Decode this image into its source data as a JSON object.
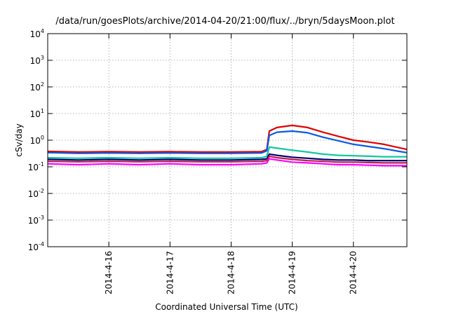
{
  "chart_data": {
    "type": "line",
    "title": "/data/run/goesPlots/archive/2014-04-20/21:00/flux/../bryn/5daysMoon.plot",
    "xlabel": "Coordinated Universal Time (UTC)",
    "ylabel": "cSv/day",
    "yscale": "log",
    "ylim": [
      0.0001,
      10000
    ],
    "xlim": [
      "2014-04-15T00:00",
      "2014-04-20T21:00"
    ],
    "grid": true,
    "legend": "none",
    "x_ticks": [
      "2014-4-16",
      "2014-4-17",
      "2014-4-18",
      "2014-4-19",
      "2014-4-20"
    ],
    "y_ticks": [
      {
        "base": "10",
        "exp": "-4"
      },
      {
        "base": "10",
        "exp": "-3"
      },
      {
        "base": "10",
        "exp": "-2"
      },
      {
        "base": "10",
        "exp": "-1"
      },
      {
        "base": "10",
        "exp": "0"
      },
      {
        "base": "10",
        "exp": "1"
      },
      {
        "base": "10",
        "exp": "2"
      },
      {
        "base": "10",
        "exp": "3"
      },
      {
        "base": "10",
        "exp": "4"
      }
    ],
    "x_dates": [
      "2014-04-15T00:00",
      "2014-04-15T12:00",
      "2014-04-16T00:00",
      "2014-04-16T12:00",
      "2014-04-17T00:00",
      "2014-04-17T12:00",
      "2014-04-18T00:00",
      "2014-04-18T12:00",
      "2014-04-18T14:00",
      "2014-04-18T15:00",
      "2014-04-18T18:00",
      "2014-04-19T00:00",
      "2014-04-19T06:00",
      "2014-04-19T12:00",
      "2014-04-19T18:00",
      "2014-04-20T00:00",
      "2014-04-20T06:00",
      "2014-04-20T12:00",
      "2014-04-20T18:00",
      "2014-04-20T21:00"
    ],
    "series": [
      {
        "color": "#e00000",
        "values": [
          0.38,
          0.36,
          0.37,
          0.36,
          0.37,
          0.36,
          0.36,
          0.37,
          0.45,
          2.2,
          3.0,
          3.6,
          3.0,
          2.0,
          1.4,
          1.0,
          0.85,
          0.7,
          0.52,
          0.45
        ]
      },
      {
        "color": "#0a5ae6",
        "values": [
          0.34,
          0.32,
          0.33,
          0.32,
          0.33,
          0.32,
          0.32,
          0.33,
          0.4,
          1.5,
          2.0,
          2.2,
          1.9,
          1.3,
          0.95,
          0.7,
          0.58,
          0.48,
          0.38,
          0.34
        ]
      },
      {
        "color": "#10c8a0",
        "values": [
          0.22,
          0.21,
          0.22,
          0.21,
          0.22,
          0.21,
          0.21,
          0.22,
          0.25,
          0.55,
          0.5,
          0.42,
          0.36,
          0.3,
          0.27,
          0.26,
          0.25,
          0.24,
          0.24,
          0.24
        ]
      },
      {
        "color": "#000070",
        "values": [
          0.19,
          0.18,
          0.19,
          0.18,
          0.19,
          0.18,
          0.18,
          0.19,
          0.2,
          0.3,
          0.27,
          0.23,
          0.21,
          0.19,
          0.18,
          0.18,
          0.17,
          0.17,
          0.17,
          0.17
        ]
      },
      {
        "color": "#c01850",
        "values": [
          0.16,
          0.155,
          0.16,
          0.155,
          0.16,
          0.155,
          0.155,
          0.16,
          0.17,
          0.25,
          0.22,
          0.19,
          0.17,
          0.16,
          0.15,
          0.15,
          0.145,
          0.14,
          0.14,
          0.14
        ]
      },
      {
        "color": "#ff00ff",
        "values": [
          0.13,
          0.12,
          0.13,
          0.12,
          0.13,
          0.12,
          0.12,
          0.13,
          0.14,
          0.2,
          0.18,
          0.15,
          0.14,
          0.13,
          0.12,
          0.12,
          0.115,
          0.11,
          0.11,
          0.11
        ]
      }
    ]
  }
}
